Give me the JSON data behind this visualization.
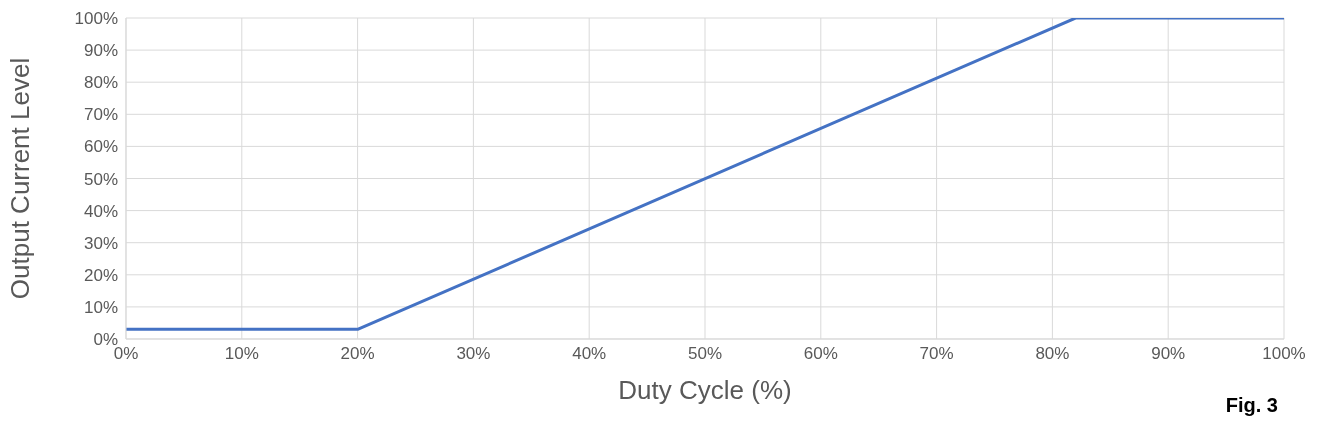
{
  "chart_data": {
    "type": "line",
    "xlabel": "Duty Cycle (%)",
    "ylabel": "Output Current Level",
    "annotations": [
      "Fig. 3"
    ],
    "x": [
      0,
      20,
      82,
      100
    ],
    "series": [
      {
        "color": "#4472c4",
        "values": [
          3,
          3,
          100,
          100
        ]
      }
    ],
    "xlim": [
      0,
      100
    ],
    "ylim": [
      0,
      100
    ],
    "xticks": [
      {
        "value": 0,
        "label": "0%"
      },
      {
        "value": 10,
        "label": "10%"
      },
      {
        "value": 20,
        "label": "20%"
      },
      {
        "value": 30,
        "label": "30%"
      },
      {
        "value": 40,
        "label": "40%"
      },
      {
        "value": 50,
        "label": "50%"
      },
      {
        "value": 60,
        "label": "60%"
      },
      {
        "value": 70,
        "label": "70%"
      },
      {
        "value": 80,
        "label": "80%"
      },
      {
        "value": 90,
        "label": "90%"
      },
      {
        "value": 100,
        "label": "100%"
      }
    ],
    "yticks": [
      {
        "value": 0,
        "label": "0%"
      },
      {
        "value": 10,
        "label": "10%"
      },
      {
        "value": 20,
        "label": "20%"
      },
      {
        "value": 30,
        "label": "30%"
      },
      {
        "value": 40,
        "label": "40%"
      },
      {
        "value": 50,
        "label": "50%"
      },
      {
        "value": 60,
        "label": "60%"
      },
      {
        "value": 70,
        "label": "70%"
      },
      {
        "value": 80,
        "label": "80%"
      },
      {
        "value": 90,
        "label": "90%"
      },
      {
        "value": 100,
        "label": "100%"
      }
    ],
    "grid": true,
    "marker": "none",
    "line_style": "solid"
  }
}
